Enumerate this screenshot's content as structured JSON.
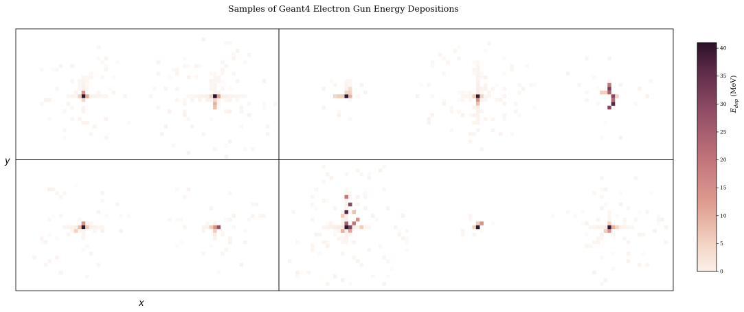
{
  "chart_data": {
    "type": "heatmap",
    "title": "Samples of Geant4 Electron Gun Energy Depositions",
    "xlabel": "x",
    "ylabel": "y",
    "colorbar": {
      "label": "E_dep (MeV)",
      "label_base": "E",
      "label_sub": "dep",
      "label_unit": " (MeV)",
      "range": [
        0,
        41
      ],
      "ticks": [
        0,
        5,
        10,
        15,
        20,
        25,
        30,
        35,
        40
      ]
    },
    "colormap": [
      "#ffffff",
      "#f5e3d8",
      "#eec3b0",
      "#d9968a",
      "#b86f77",
      "#8c4c63",
      "#5e2c48",
      "#2b1129"
    ],
    "grid_note": "two rows, five panels per row (panel borders drawn for two panel groups per row)",
    "panels": [
      {
        "row": 0,
        "col": 0,
        "hotspots": [
          [
            0,
            0,
            40
          ],
          [
            0,
            -1,
            18
          ],
          [
            1,
            0,
            14
          ],
          [
            -1,
            0,
            9
          ],
          [
            0,
            1,
            8
          ]
        ],
        "arms": [
          {
            "dir": [
              0,
              -1
            ],
            "len": 5,
            "val": 3
          },
          {
            "dir": [
              1,
              0
            ],
            "len": 5,
            "val": 3
          },
          {
            "dir": [
              -1,
              0
            ],
            "len": 4,
            "val": 2
          }
        ],
        "spread": 8,
        "count": 50
      },
      {
        "row": 0,
        "col": 1,
        "hotspots": [
          [
            0,
            0,
            41
          ],
          [
            1,
            0,
            16
          ],
          [
            0,
            1,
            9
          ],
          [
            0,
            2,
            14
          ],
          [
            0,
            3,
            12
          ],
          [
            -1,
            0,
            8
          ]
        ],
        "arms": [
          {
            "dir": [
              1,
              0
            ],
            "len": 8,
            "val": 3
          },
          {
            "dir": [
              -1,
              0
            ],
            "len": 7,
            "val": 3
          },
          {
            "dir": [
              0,
              -1
            ],
            "len": 6,
            "val": 2
          }
        ],
        "spread": 10,
        "count": 90
      },
      {
        "row": 0,
        "col": 2,
        "hotspots": [
          [
            0,
            0,
            40
          ],
          [
            1,
            0,
            14
          ],
          [
            -1,
            0,
            10
          ],
          [
            -2,
            0,
            10
          ],
          [
            -3,
            0,
            8
          ],
          [
            0,
            -1,
            8
          ],
          [
            1,
            -1,
            9
          ],
          [
            1,
            -2,
            7
          ]
        ],
        "arms": [
          {
            "dir": [
              0,
              -1
            ],
            "len": 4,
            "val": 3
          }
        ],
        "spread": 4,
        "count": 20
      },
      {
        "row": 0,
        "col": 3,
        "hotspots": [
          [
            0,
            0,
            40
          ],
          [
            0,
            1,
            18
          ],
          [
            0,
            2,
            12
          ],
          [
            -1,
            0,
            10
          ],
          [
            1,
            0,
            9
          ]
        ],
        "arms": [
          {
            "dir": [
              0,
              1
            ],
            "len": 7,
            "val": 4
          },
          {
            "dir": [
              0,
              -1
            ],
            "len": 9,
            "val": 3
          },
          {
            "dir": [
              1,
              0
            ],
            "len": 3,
            "val": 2
          },
          {
            "dir": [
              -1,
              0
            ],
            "len": 4,
            "val": 2
          }
        ],
        "spread": 9,
        "count": 85
      },
      {
        "row": 0,
        "col": 4,
        "hotspots": [
          [
            0,
            -3,
            22
          ],
          [
            0,
            -2,
            32
          ],
          [
            0,
            -1,
            26
          ],
          [
            1,
            0,
            30
          ],
          [
            1,
            1,
            24
          ],
          [
            1,
            2,
            36
          ],
          [
            0,
            3,
            30
          ],
          [
            -1,
            -1,
            10
          ],
          [
            -2,
            -1,
            10
          ],
          [
            2,
            0,
            9
          ]
        ],
        "arms": [],
        "spread": 7,
        "count": 25
      },
      {
        "row": 1,
        "col": 0,
        "hotspots": [
          [
            0,
            0,
            40
          ],
          [
            0,
            -1,
            18
          ],
          [
            -1,
            0,
            12
          ],
          [
            1,
            0,
            10
          ],
          [
            -2,
            1,
            9
          ]
        ],
        "arms": [
          {
            "dir": [
              -1,
              0
            ],
            "len": 5,
            "val": 3
          },
          {
            "dir": [
              1,
              0
            ],
            "len": 5,
            "val": 3
          },
          {
            "dir": [
              0,
              1
            ],
            "len": 3,
            "val": 2
          }
        ],
        "spread": 9,
        "count": 45
      },
      {
        "row": 1,
        "col": 1,
        "hotspots": [
          [
            0,
            0,
            18
          ],
          [
            1,
            0,
            28
          ],
          [
            0,
            1,
            10
          ],
          [
            -1,
            0,
            10
          ]
        ],
        "arms": [
          {
            "dir": [
              0,
              1
            ],
            "len": 3,
            "val": 4
          },
          {
            "dir": [
              -1,
              0
            ],
            "len": 3,
            "val": 3
          }
        ],
        "spread": 8,
        "count": 40
      },
      {
        "row": 1,
        "col": 2,
        "hotspots": [
          [
            0,
            0,
            40
          ],
          [
            1,
            0,
            30
          ],
          [
            0,
            -1,
            26
          ],
          [
            2,
            -1,
            22
          ],
          [
            3,
            -2,
            18
          ],
          [
            0,
            -4,
            36
          ],
          [
            1,
            -6,
            30
          ],
          [
            0,
            -8,
            22
          ],
          [
            -1,
            1,
            14
          ],
          [
            1,
            1,
            16
          ],
          [
            -1,
            -3,
            10
          ],
          [
            2,
            -4,
            12
          ],
          [
            4,
            0,
            10
          ]
        ],
        "arms": [
          {
            "dir": [
              -1,
              0
            ],
            "len": 6,
            "val": 4
          },
          {
            "dir": [
              0,
              1
            ],
            "len": 4,
            "val": 3
          },
          {
            "dir": [
              0,
              -1
            ],
            "len": 10,
            "val": 3
          },
          {
            "dir": [
              1,
              0
            ],
            "len": 6,
            "val": 3
          }
        ],
        "spread": 11,
        "count": 100
      },
      {
        "row": 1,
        "col": 3,
        "hotspots": [
          [
            0,
            0,
            40
          ],
          [
            1,
            -1,
            18
          ],
          [
            0,
            -1,
            10
          ],
          [
            -1,
            0,
            9
          ]
        ],
        "arms": [],
        "spread": 3,
        "count": 8
      },
      {
        "row": 1,
        "col": 4,
        "hotspots": [
          [
            0,
            0,
            40
          ],
          [
            1,
            0,
            14
          ],
          [
            0,
            1,
            18
          ],
          [
            -1,
            1,
            10
          ],
          [
            0,
            -1,
            9
          ],
          [
            2,
            0,
            8
          ]
        ],
        "arms": [
          {
            "dir": [
              1,
              0
            ],
            "len": 6,
            "val": 3
          },
          {
            "dir": [
              -1,
              0
            ],
            "len": 5,
            "val": 3
          },
          {
            "dir": [
              -1,
              1
            ],
            "len": 5,
            "val": 2
          },
          {
            "dir": [
              0,
              -1
            ],
            "len": 3,
            "val": 2
          }
        ],
        "spread": 9,
        "count": 65
      }
    ]
  }
}
